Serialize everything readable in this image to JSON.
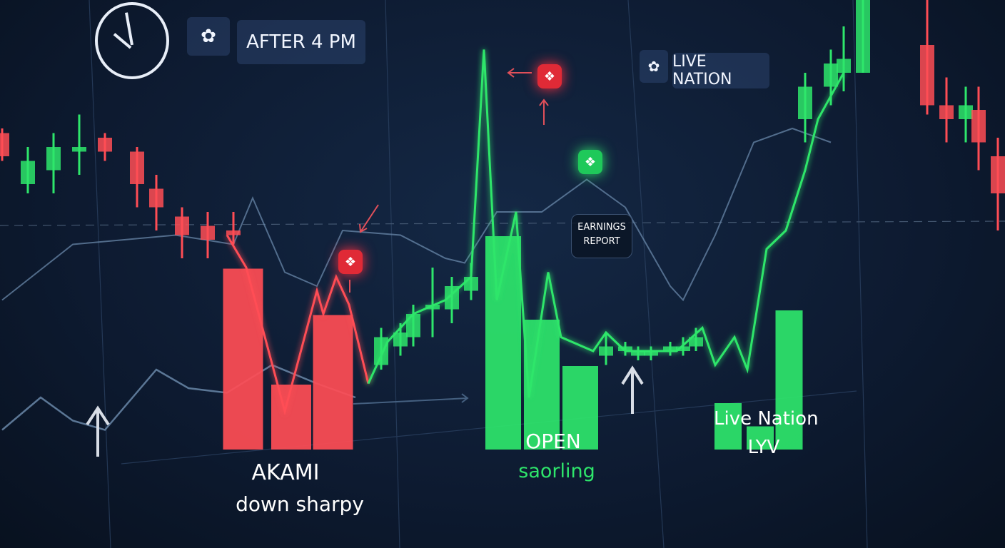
{
  "header": {
    "time_label": "AFTER 4 PM",
    "ticker_label": "LIVE NATION"
  },
  "annotations": {
    "earnings": "EARNINGS REPORT",
    "akami_name": "AKAMI",
    "akami_note": "down sharpy",
    "open_name": "OPEN",
    "open_note": "saorling",
    "lyv_name": "Live Nation",
    "lyv_ticker": "LYV"
  },
  "icons": [
    "clock-icon",
    "gear-icon",
    "gear-icon",
    "alert-badge-icon",
    "alert-badge-icon",
    "up-badge-icon",
    "arrow-up-icon",
    "arrow-up-icon"
  ],
  "colors": {
    "up": "#2ee66b",
    "down": "#ff4d55",
    "background": "#0d1a30",
    "line": "#6f8fb0"
  },
  "chart_data": {
    "type": "candlestick-bar-line",
    "title": "",
    "xlabel": "",
    "ylabel": "",
    "grid": true,
    "price_line": {
      "x": [
        2,
        5,
        11,
        16,
        17,
        19,
        21,
        24,
        27,
        31,
        36,
        40,
        42,
        44,
        47,
        49,
        52,
        54,
        59,
        61,
        64,
        72,
        76,
        78,
        81,
        83,
        86,
        89,
        92,
        94,
        98
      ],
      "y": [
        57,
        50,
        19,
        45,
        40,
        48,
        42,
        25,
        34,
        40,
        43,
        48,
        97,
        43,
        62,
        22,
        49,
        35,
        32,
        36,
        32,
        32,
        37,
        29,
        35,
        28,
        54,
        58,
        71,
        82,
        92
      ],
      "down_until_x": 24
    },
    "moving_average": {
      "x": [
        -33,
        -22,
        -6,
        3,
        6,
        11,
        16,
        20,
        29,
        36,
        39,
        44,
        51,
        58,
        64,
        71,
        73,
        78,
        84,
        90,
        96
      ],
      "y": [
        43,
        55,
        57,
        55,
        65,
        49,
        46,
        58,
        57,
        52,
        51,
        62,
        62,
        69,
        63,
        46,
        43,
        57,
        77,
        80,
        77
      ]
    },
    "lower_line": {
      "x": [
        -33,
        -27,
        -22,
        -17,
        -9,
        -4,
        2,
        9,
        16,
        22
      ],
      "y": [
        15,
        22,
        17,
        15,
        28,
        24,
        23,
        29,
        25,
        22
      ]
    },
    "candles": [
      {
        "x": -33,
        "o": 79,
        "c": 74,
        "h": 80,
        "l": 73
      },
      {
        "x": -29,
        "o": 68,
        "c": 73,
        "h": 76,
        "l": 66
      },
      {
        "x": -25,
        "o": 71,
        "c": 76,
        "h": 79,
        "l": 66
      },
      {
        "x": -21,
        "o": 75,
        "c": 76,
        "h": 83,
        "l": 70
      },
      {
        "x": -17,
        "o": 78,
        "c": 75,
        "h": 79,
        "l": 73
      },
      {
        "x": -12,
        "o": 75,
        "c": 68,
        "h": 76,
        "l": 63
      },
      {
        "x": -9,
        "o": 67,
        "c": 63,
        "h": 70,
        "l": 58
      },
      {
        "x": -5,
        "o": 61,
        "c": 57,
        "h": 63,
        "l": 52
      },
      {
        "x": -1,
        "o": 59,
        "c": 56,
        "h": 62,
        "l": 52
      },
      {
        "x": 3,
        "o": 58,
        "c": 57,
        "h": 62,
        "l": 55
      },
      {
        "x": 26,
        "o": 29,
        "c": 35,
        "h": 37,
        "l": 28
      },
      {
        "x": 29,
        "o": 33,
        "c": 36,
        "h": 38,
        "l": 31
      },
      {
        "x": 31,
        "o": 35,
        "c": 40,
        "h": 42,
        "l": 33
      },
      {
        "x": 34,
        "o": 41,
        "c": 42,
        "h": 50,
        "l": 35
      },
      {
        "x": 37,
        "o": 41,
        "c": 46,
        "h": 48,
        "l": 38
      },
      {
        "x": 40,
        "o": 45,
        "c": 48,
        "h": 51,
        "l": 43
      },
      {
        "x": 61,
        "o": 31,
        "c": 33,
        "h": 36,
        "l": 29
      },
      {
        "x": 64,
        "o": 32,
        "c": 33,
        "h": 34,
        "l": 31
      },
      {
        "x": 66,
        "o": 31,
        "c": 32,
        "h": 33,
        "l": 30
      },
      {
        "x": 68,
        "o": 31,
        "c": 32,
        "h": 33,
        "l": 30
      },
      {
        "x": 71,
        "o": 32,
        "c": 33,
        "h": 34,
        "l": 31
      },
      {
        "x": 73,
        "o": 32,
        "c": 33,
        "h": 35,
        "l": 31
      },
      {
        "x": 75,
        "o": 33,
        "c": 35,
        "h": 37,
        "l": 32
      },
      {
        "x": 92,
        "o": 82,
        "c": 89,
        "h": 92,
        "l": 77
      },
      {
        "x": 96,
        "o": 89,
        "c": 94,
        "h": 97,
        "l": 85
      },
      {
        "x": 98,
        "o": 92,
        "c": 95,
        "h": 102,
        "l": 88
      },
      {
        "x": 101,
        "o": 92,
        "c": 108,
        "h": 110,
        "l": 92
      },
      {
        "x": 111,
        "o": 98,
        "c": 85,
        "h": 110,
        "l": 83
      },
      {
        "x": 114,
        "o": 85,
        "c": 82,
        "h": 91,
        "l": 77
      },
      {
        "x": 117,
        "o": 82,
        "c": 85,
        "h": 89,
        "l": 77
      },
      {
        "x": 119,
        "o": 84,
        "c": 77,
        "h": 89,
        "l": 71
      },
      {
        "x": 122,
        "o": 74,
        "c": 66,
        "h": 78,
        "l": 58
      }
    ],
    "bars": [
      {
        "group": "AKAMI",
        "x": 4.5,
        "value": 39,
        "dir": "down"
      },
      {
        "group": "AKAMI",
        "x": 12,
        "value": 14,
        "dir": "down"
      },
      {
        "group": "AKAMI",
        "x": 18.5,
        "value": 29,
        "dir": "down"
      },
      {
        "group": "OPEN",
        "x": 45,
        "value": 46,
        "dir": "up"
      },
      {
        "group": "OPEN",
        "x": 51,
        "value": 28,
        "dir": "up"
      },
      {
        "group": "OPEN",
        "x": 57,
        "value": 18,
        "dir": "up"
      },
      {
        "group": "LYV",
        "x": 80,
        "value": 10,
        "dir": "up"
      },
      {
        "group": "LYV",
        "x": 85,
        "value": 5,
        "dir": "up"
      },
      {
        "group": "LYV",
        "x": 89.5,
        "value": 30,
        "dir": "up"
      }
    ]
  }
}
